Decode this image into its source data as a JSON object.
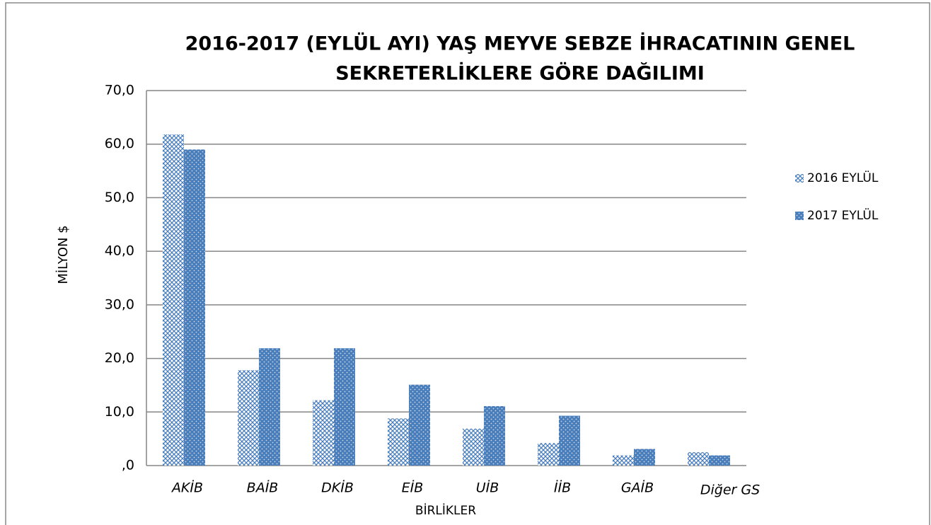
{
  "chart_data": {
    "type": "bar",
    "title": [
      "2016-2017 (EYLÜL AYI) YAŞ MEYVE SEBZE İHRACATININ GENEL",
      "SEKRETERLİKLERE  GÖRE DAĞILIMI"
    ],
    "x_label": "BİRLİKLER",
    "y_label": "MİLYON $",
    "categories": [
      "AKİB",
      "BAİB",
      "DKİB",
      "EİB",
      "UİB",
      "İİB",
      "GAİB",
      "Diğer GS"
    ],
    "series": [
      {
        "name": "2016 EYLÜL",
        "color": "#4a7ebb",
        "values": [
          61.8,
          17.8,
          12.2,
          8.8,
          6.9,
          4.2,
          1.9,
          2.5
        ]
      },
      {
        "name": "2017 EYLÜL",
        "color": "#4a7ebb",
        "values": [
          59.0,
          21.9,
          21.9,
          15.1,
          11.1,
          9.3,
          3.1,
          1.9
        ]
      }
    ],
    "ylim": [
      0,
      70
    ],
    "yticks": [
      {
        "value": 0,
        "label": ",0"
      },
      {
        "value": 10,
        "label": "10,0"
      },
      {
        "value": 20,
        "label": "20,0"
      },
      {
        "value": 30,
        "label": "30,0"
      },
      {
        "value": 40,
        "label": "40,0"
      },
      {
        "value": 50,
        "label": "50,0"
      },
      {
        "value": 60,
        "label": "60,0"
      },
      {
        "value": 70,
        "label": "70,0"
      }
    ],
    "grid": true,
    "legend": "right"
  }
}
